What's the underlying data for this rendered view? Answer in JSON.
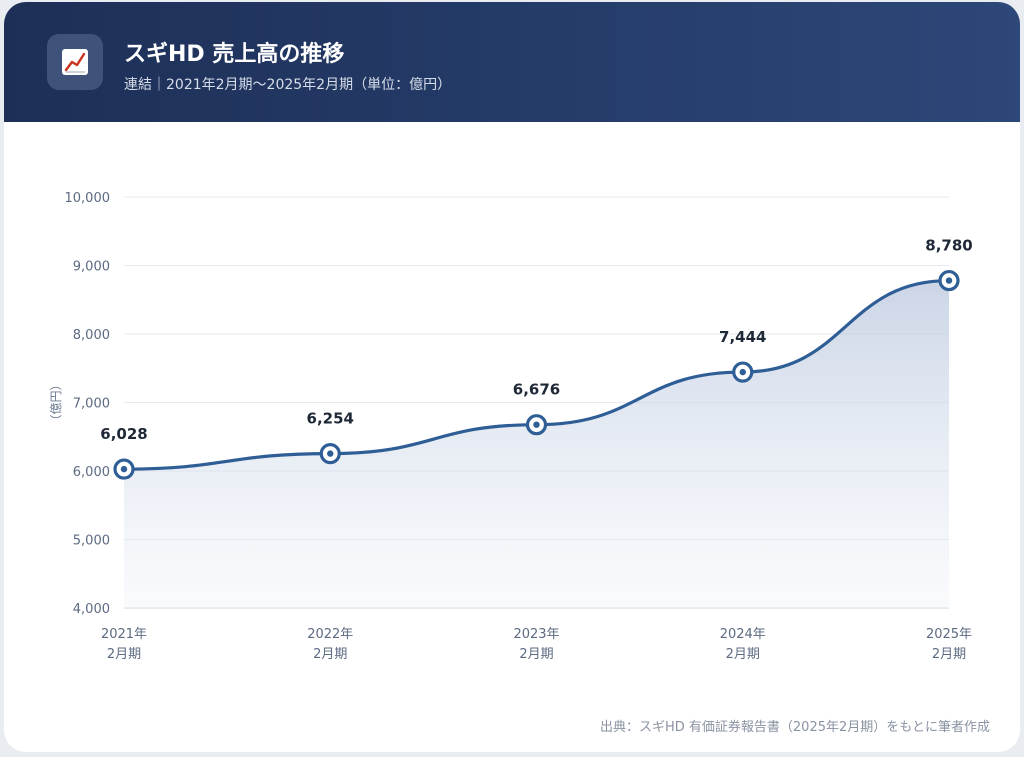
{
  "header": {
    "icon": "chart-up-icon",
    "title": "スギHD 売上高の推移",
    "subtitle": "連結｜2021年2月期〜2025年2月期（単位：億円）"
  },
  "source": "出典：スギHD 有価証券報告書（2025年2月期）をもとに筆者作成",
  "colors": {
    "header_start": "#1d2f57",
    "header_end": "#2c4778",
    "line": "#2f5e96",
    "area": "#c8d3e5"
  },
  "chart_data": {
    "type": "area",
    "categories": [
      [
        "2021年",
        "2月期"
      ],
      [
        "2022年",
        "2月期"
      ],
      [
        "2023年",
        "2月期"
      ],
      [
        "2024年",
        "2月期"
      ],
      [
        "2025年",
        "2月期"
      ]
    ],
    "values": [
      6028,
      6254,
      6676,
      7444,
      8780
    ],
    "value_labels": [
      "6,028",
      "6,254",
      "6,676",
      "7,444",
      "8,780"
    ],
    "ylabel": "（億円）",
    "ylim": [
      4000,
      10000
    ],
    "yticks": [
      4000,
      5000,
      6000,
      7000,
      8000,
      9000,
      10000
    ],
    "ytick_labels": [
      "4,000",
      "5,000",
      "6,000",
      "7,000",
      "8,000",
      "9,000",
      "10,000"
    ],
    "grid": true,
    "smooth": true
  }
}
